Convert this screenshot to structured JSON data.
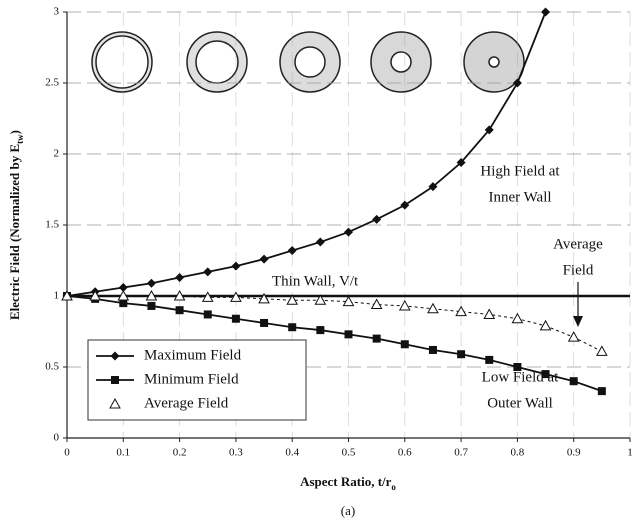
{
  "chart_data": {
    "type": "line",
    "y_label": [
      "Electric Field (Normalized by E",
      "tw",
      ")"
    ],
    "x_label": [
      "Aspect Ratio, t/r",
      "o"
    ],
    "caption": "(a)",
    "x": [
      0,
      0.05,
      0.1,
      0.15,
      0.2,
      0.25,
      0.3,
      0.35,
      0.4,
      0.45,
      0.5,
      0.55,
      0.6,
      0.65,
      0.7,
      0.75,
      0.8,
      0.85,
      0.9,
      0.95
    ],
    "series": [
      {
        "name": "Maximum Field",
        "color": "#111111",
        "marker": "diamond",
        "dash": "solid",
        "values": [
          1.0,
          1.03,
          1.06,
          1.09,
          1.13,
          1.17,
          1.21,
          1.26,
          1.32,
          1.38,
          1.45,
          1.54,
          1.64,
          1.77,
          1.94,
          2.17,
          2.5,
          3.0,
          null,
          null
        ]
      },
      {
        "name": "Minimum Field",
        "color": "#111111",
        "marker": "square",
        "dash": "solid",
        "values": [
          1.0,
          0.98,
          0.95,
          0.93,
          0.9,
          0.87,
          0.84,
          0.81,
          0.78,
          0.76,
          0.73,
          0.7,
          0.66,
          0.62,
          0.59,
          0.55,
          0.5,
          0.45,
          0.4,
          0.33
        ]
      },
      {
        "name": "Average Field",
        "color": "#111111",
        "marker": "triangle",
        "dash": "dotted",
        "values": [
          1.0,
          1.0,
          1.0,
          1.0,
          1.0,
          0.99,
          0.99,
          0.98,
          0.97,
          0.97,
          0.96,
          0.94,
          0.93,
          0.91,
          0.89,
          0.87,
          0.84,
          0.79,
          0.71,
          0.61
        ]
      }
    ],
    "reference_line": {
      "label": "Thin Wall, V/t",
      "value": 1
    },
    "annotations": [
      {
        "lines": [
          "High Field at",
          "Inner Wall"
        ]
      },
      {
        "lines": [
          "Average",
          "Field"
        ]
      },
      {
        "lines": [
          "Low Field at",
          "Outer Wall"
        ]
      }
    ],
    "xlim": [
      0,
      1
    ],
    "ylim": [
      0,
      3
    ],
    "xticks": [
      0,
      0.1,
      0.2,
      0.3,
      0.4,
      0.5,
      0.6,
      0.7,
      0.8,
      0.9,
      1
    ],
    "yticks": [
      0,
      0.5,
      1,
      1.5,
      2,
      2.5,
      3
    ],
    "grid": true,
    "legend": "lower-left"
  }
}
